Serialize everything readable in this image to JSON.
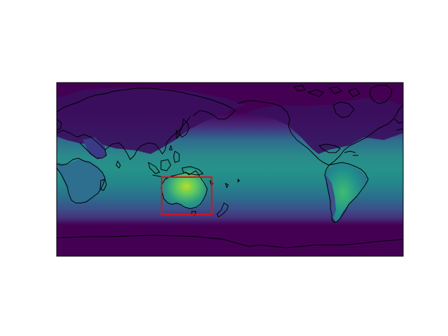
{
  "figure": {
    "background_color": "#ffffff"
  },
  "map": {
    "projection": "plate-carree",
    "central_longitude": 180,
    "lon_range": [
      0,
      360
    ],
    "lat_range": [
      -90,
      90
    ],
    "colormap": "viridis",
    "field_extent_lat": [
      -60,
      60
    ],
    "coastline_color": "#000000",
    "frame_color": "#000000",
    "colors": {
      "low": "#440154",
      "mid_low": "#3b528b",
      "mid": "#21918c",
      "mid_high": "#5ec962",
      "high": "#fde725"
    }
  },
  "highlight_box": {
    "label": "",
    "lon_range": [
      109,
      161
    ],
    "lat_range": [
      -47,
      -8
    ],
    "edge_color": "#e01010"
  }
}
